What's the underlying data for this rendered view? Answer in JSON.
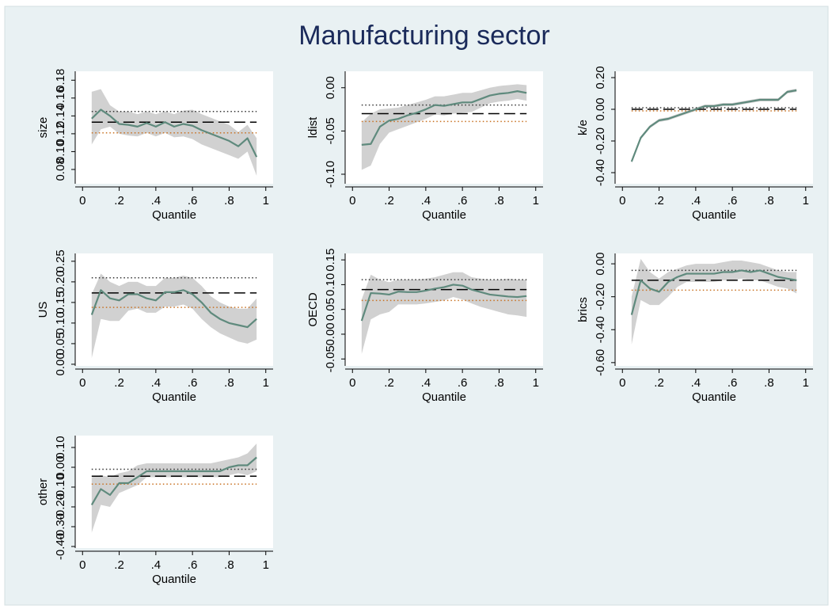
{
  "title": "Manufacturing sector",
  "chart_data": [
    {
      "type": "line",
      "ylabel": "size",
      "xlabel": "Quantile",
      "x": [
        0.05,
        0.1,
        0.15,
        0.2,
        0.25,
        0.3,
        0.35,
        0.4,
        0.45,
        0.5,
        0.55,
        0.6,
        0.65,
        0.7,
        0.75,
        0.8,
        0.85,
        0.9,
        0.95
      ],
      "series": [
        {
          "color": "#5f8a7d",
          "values": [
            0.137,
            0.147,
            0.14,
            0.131,
            0.13,
            0.128,
            0.132,
            0.128,
            0.133,
            0.128,
            0.131,
            0.129,
            0.124,
            0.12,
            0.116,
            0.112,
            0.106,
            0.115,
            0.094
          ]
        }
      ],
      "band": {
        "color": "#c9c9c9",
        "upper": [
          0.167,
          0.17,
          0.152,
          0.145,
          0.145,
          0.142,
          0.145,
          0.142,
          0.145,
          0.142,
          0.146,
          0.147,
          0.142,
          0.138,
          0.134,
          0.13,
          0.122,
          0.13,
          0.115
        ],
        "lower": [
          0.108,
          0.125,
          0.128,
          0.12,
          0.118,
          0.117,
          0.121,
          0.117,
          0.121,
          0.116,
          0.117,
          0.114,
          0.108,
          0.104,
          0.1,
          0.096,
          0.092,
          0.1,
          0.073
        ]
      },
      "reference_lines": [
        {
          "value": 0.133,
          "style": "dashed",
          "color": "#000000"
        },
        {
          "value": 0.145,
          "style": "dotted",
          "color": "#333333"
        },
        {
          "value": 0.121,
          "style": "dotted",
          "color": "#c87020"
        }
      ],
      "xlim": [
        -0.04,
        1.04
      ],
      "xticks": [
        0,
        {
          "value": 0.2,
          "label": ".2"
        },
        {
          "value": 0.4,
          "label": ".4"
        },
        {
          "value": 0.6,
          "label": ".6"
        },
        {
          "value": 0.8,
          "label": ".8"
        },
        1
      ],
      "ylim": [
        0.064,
        0.19
      ],
      "yticks": [
        0.08,
        {
          "value": 0.1,
          "label": "0.10"
        },
        0.12,
        0.14,
        0.16,
        0.18
      ]
    },
    {
      "type": "line",
      "ylabel": "ldist",
      "xlabel": "Quantile",
      "x": [
        0.05,
        0.1,
        0.15,
        0.2,
        0.25,
        0.3,
        0.35,
        0.4,
        0.45,
        0.5,
        0.55,
        0.6,
        0.65,
        0.7,
        0.75,
        0.8,
        0.85,
        0.9,
        0.95
      ],
      "series": [
        {
          "color": "#5f8a7d",
          "values": [
            -0.066,
            -0.065,
            -0.045,
            -0.038,
            -0.036,
            -0.032,
            -0.029,
            -0.025,
            -0.02,
            -0.021,
            -0.019,
            -0.017,
            -0.017,
            -0.013,
            -0.009,
            -0.007,
            -0.006,
            -0.004,
            -0.006
          ]
        }
      ],
      "band": {
        "color": "#c9c9c9",
        "upper": [
          -0.04,
          -0.03,
          -0.025,
          -0.024,
          -0.023,
          -0.02,
          -0.017,
          -0.014,
          -0.01,
          -0.01,
          -0.008,
          -0.006,
          -0.006,
          -0.003,
          0.0,
          0.002,
          0.003,
          0.004,
          0.003
        ],
        "lower": [
          -0.095,
          -0.09,
          -0.065,
          -0.052,
          -0.048,
          -0.044,
          -0.04,
          -0.036,
          -0.031,
          -0.032,
          -0.03,
          -0.029,
          -0.028,
          -0.023,
          -0.018,
          -0.016,
          -0.015,
          -0.013,
          -0.015
        ]
      },
      "reference_lines": [
        {
          "value": -0.03,
          "style": "dashed",
          "color": "#000000"
        },
        {
          "value": -0.02,
          "style": "dotted",
          "color": "#333333"
        },
        {
          "value": -0.039,
          "style": "dotted",
          "color": "#c87020"
        }
      ],
      "xlim": [
        -0.04,
        1.04
      ],
      "xticks": [
        0,
        {
          "value": 0.2,
          "label": ".2"
        },
        {
          "value": 0.4,
          "label": ".4"
        },
        {
          "value": 0.6,
          "label": ".6"
        },
        {
          "value": 0.8,
          "label": ".8"
        },
        1
      ],
      "ylim": [
        -0.111,
        0.019
      ],
      "yticks": [
        {
          "value": -0.1,
          "label": "-0.10"
        },
        -0.05,
        {
          "value": 0,
          "label": "0.00"
        }
      ]
    },
    {
      "type": "line",
      "ylabel": "k/e",
      "xlabel": "Quantile",
      "x": [
        0.05,
        0.1,
        0.15,
        0.2,
        0.25,
        0.3,
        0.35,
        0.4,
        0.45,
        0.5,
        0.55,
        0.6,
        0.65,
        0.7,
        0.75,
        0.8,
        0.85,
        0.9,
        0.95
      ],
      "series": [
        {
          "color": "#5f8a7d",
          "values": [
            -0.33,
            -0.18,
            -0.11,
            -0.07,
            -0.06,
            -0.04,
            -0.02,
            0.0,
            0.02,
            0.02,
            0.03,
            0.03,
            0.04,
            0.05,
            0.06,
            0.06,
            0.06,
            0.11,
            0.12
          ]
        }
      ],
      "band": {
        "color": "#c9c9c9",
        "upper": [
          -0.32,
          -0.17,
          -0.1,
          -0.06,
          -0.05,
          -0.03,
          -0.01,
          0.01,
          0.03,
          0.03,
          0.04,
          0.04,
          0.05,
          0.06,
          0.07,
          0.07,
          0.07,
          0.12,
          0.13
        ],
        "lower": [
          -0.34,
          -0.19,
          -0.12,
          -0.08,
          -0.07,
          -0.05,
          -0.03,
          -0.01,
          0.01,
          0.01,
          0.02,
          0.02,
          0.03,
          0.04,
          0.05,
          0.05,
          0.05,
          0.1,
          0.11
        ]
      },
      "reference_lines": [
        {
          "value": 0.0,
          "style": "dashed",
          "color": "#000000"
        },
        {
          "value": 0.01,
          "style": "dotted",
          "color": "#333333"
        },
        {
          "value": -0.01,
          "style": "dotted",
          "color": "#c87020"
        }
      ],
      "xlim": [
        -0.04,
        1.04
      ],
      "xticks": [
        0,
        {
          "value": 0.2,
          "label": ".2"
        },
        {
          "value": 0.4,
          "label": ".4"
        },
        {
          "value": 0.6,
          "label": ".6"
        },
        {
          "value": 0.8,
          "label": ".8"
        },
        1
      ],
      "ylim": [
        -0.47,
        0.24
      ],
      "yticks": [
        {
          "value": -0.4,
          "label": "-0.40"
        },
        {
          "value": -0.2,
          "label": "-0.20"
        },
        {
          "value": 0,
          "label": "0.00"
        },
        {
          "value": 0.2,
          "label": "0.20"
        }
      ]
    },
    {
      "type": "line",
      "ylabel": "US",
      "xlabel": "Quantile",
      "x": [
        0.05,
        0.1,
        0.15,
        0.2,
        0.25,
        0.3,
        0.35,
        0.4,
        0.45,
        0.5,
        0.55,
        0.6,
        0.65,
        0.7,
        0.75,
        0.8,
        0.85,
        0.9,
        0.95
      ],
      "series": [
        {
          "color": "#5f8a7d",
          "values": [
            0.12,
            0.18,
            0.16,
            0.155,
            0.17,
            0.17,
            0.16,
            0.155,
            0.175,
            0.175,
            0.18,
            0.17,
            0.15,
            0.125,
            0.11,
            0.1,
            0.095,
            0.09,
            0.11
          ]
        }
      ],
      "band": {
        "color": "#c9c9c9",
        "upper": [
          0.17,
          0.22,
          0.2,
          0.19,
          0.2,
          0.2,
          0.19,
          0.19,
          0.21,
          0.21,
          0.215,
          0.21,
          0.19,
          0.165,
          0.15,
          0.14,
          0.135,
          0.135,
          0.16
        ],
        "lower": [
          0.015,
          0.11,
          0.105,
          0.105,
          0.13,
          0.135,
          0.125,
          0.125,
          0.14,
          0.14,
          0.145,
          0.135,
          0.11,
          0.09,
          0.075,
          0.065,
          0.055,
          0.05,
          0.06
        ]
      },
      "reference_lines": [
        {
          "value": 0.173,
          "style": "dashed",
          "color": "#000000"
        },
        {
          "value": 0.21,
          "style": "dotted",
          "color": "#333333"
        },
        {
          "value": 0.138,
          "style": "dotted",
          "color": "#c87020"
        }
      ],
      "xlim": [
        -0.04,
        1.04
      ],
      "xticks": [
        0,
        {
          "value": 0.2,
          "label": ".2"
        },
        {
          "value": 0.4,
          "label": ".4"
        },
        {
          "value": 0.6,
          "label": ".6"
        },
        {
          "value": 0.8,
          "label": ".8"
        },
        1
      ],
      "ylim": [
        -0.004,
        0.269
      ],
      "yticks": [
        {
          "value": 0,
          "label": "0.00"
        },
        0.05,
        {
          "value": 0.1,
          "label": "0.10"
        },
        0.15,
        {
          "value": 0.2,
          "label": "0.20"
        },
        0.25
      ]
    },
    {
      "type": "line",
      "ylabel": "OECD",
      "xlabel": "Quantile",
      "x": [
        0.05,
        0.1,
        0.15,
        0.2,
        0.25,
        0.3,
        0.35,
        0.4,
        0.45,
        0.5,
        0.55,
        0.6,
        0.65,
        0.7,
        0.75,
        0.8,
        0.85,
        0.9,
        0.95
      ],
      "series": [
        {
          "color": "#5f8a7d",
          "values": [
            0.027,
            0.083,
            0.082,
            0.08,
            0.086,
            0.085,
            0.085,
            0.088,
            0.092,
            0.095,
            0.1,
            0.098,
            0.09,
            0.085,
            0.08,
            0.078,
            0.076,
            0.075,
            0.077
          ]
        }
      ],
      "band": {
        "color": "#c9c9c9",
        "upper": [
          0.07,
          0.12,
          0.11,
          0.105,
          0.11,
          0.11,
          0.11,
          0.112,
          0.115,
          0.12,
          0.125,
          0.125,
          0.115,
          0.112,
          0.11,
          0.11,
          0.112,
          0.11,
          0.11
        ],
        "lower": [
          -0.04,
          0.03,
          0.04,
          0.045,
          0.06,
          0.06,
          0.06,
          0.062,
          0.065,
          0.068,
          0.075,
          0.07,
          0.062,
          0.055,
          0.05,
          0.045,
          0.04,
          0.038,
          0.035
        ]
      },
      "reference_lines": [
        {
          "value": 0.09,
          "style": "dashed",
          "color": "#000000"
        },
        {
          "value": 0.11,
          "style": "dotted",
          "color": "#333333"
        },
        {
          "value": 0.068,
          "style": "dotted",
          "color": "#c87020"
        }
      ],
      "xlim": [
        -0.04,
        1.04
      ],
      "xticks": [
        0,
        {
          "value": 0.2,
          "label": ".2"
        },
        {
          "value": 0.4,
          "label": ".4"
        },
        {
          "value": 0.6,
          "label": ".6"
        },
        {
          "value": 0.8,
          "label": ".8"
        },
        1
      ],
      "ylim": [
        -0.064,
        0.163
      ],
      "yticks": [
        -0.05,
        {
          "value": 0,
          "label": "0.00"
        },
        0.05,
        {
          "value": 0.1,
          "label": "0.10"
        },
        0.15
      ]
    },
    {
      "type": "line",
      "ylabel": "brics",
      "xlabel": "Quantile",
      "x": [
        0.05,
        0.1,
        0.15,
        0.2,
        0.25,
        0.3,
        0.35,
        0.4,
        0.45,
        0.5,
        0.55,
        0.6,
        0.65,
        0.7,
        0.75,
        0.8,
        0.85,
        0.9,
        0.95
      ],
      "series": [
        {
          "color": "#5f8a7d",
          "values": [
            -0.31,
            -0.1,
            -0.15,
            -0.17,
            -0.11,
            -0.08,
            -0.06,
            -0.06,
            -0.06,
            -0.06,
            -0.05,
            -0.05,
            -0.04,
            -0.05,
            -0.04,
            -0.06,
            -0.08,
            -0.09,
            -0.1
          ]
        }
      ],
      "band": {
        "color": "#c9c9c9",
        "upper": [
          -0.2,
          0.03,
          -0.05,
          -0.09,
          -0.05,
          -0.03,
          -0.01,
          0.0,
          0.0,
          0.0,
          0.01,
          0.02,
          0.02,
          0.01,
          0.0,
          -0.02,
          -0.04,
          -0.05,
          -0.05
        ],
        "lower": [
          -0.49,
          -0.22,
          -0.25,
          -0.25,
          -0.2,
          -0.14,
          -0.11,
          -0.11,
          -0.11,
          -0.11,
          -0.1,
          -0.1,
          -0.09,
          -0.1,
          -0.1,
          -0.12,
          -0.14,
          -0.15,
          -0.18
        ]
      },
      "reference_lines": [
        {
          "value": -0.1,
          "style": "dashed",
          "color": "#000000"
        },
        {
          "value": -0.04,
          "style": "dotted",
          "color": "#333333"
        },
        {
          "value": -0.16,
          "style": "dotted",
          "color": "#c87020"
        }
      ],
      "xlim": [
        -0.04,
        1.04
      ],
      "xticks": [
        0,
        {
          "value": 0.2,
          "label": ".2"
        },
        {
          "value": 0.4,
          "label": ".4"
        },
        {
          "value": 0.6,
          "label": ".6"
        },
        {
          "value": 0.8,
          "label": ".8"
        },
        1
      ],
      "ylim": [
        -0.62,
        0.063
      ],
      "yticks": [
        {
          "value": -0.6,
          "label": "-0.60"
        },
        {
          "value": -0.4,
          "label": "-0.40"
        },
        {
          "value": -0.2,
          "label": "-0.20"
        },
        {
          "value": 0,
          "label": "0.00"
        }
      ]
    },
    {
      "type": "line",
      "ylabel": "other",
      "xlabel": "Quantile",
      "x": [
        0.05,
        0.1,
        0.15,
        0.2,
        0.25,
        0.3,
        0.35,
        0.4,
        0.45,
        0.5,
        0.55,
        0.6,
        0.65,
        0.7,
        0.75,
        0.8,
        0.85,
        0.9,
        0.95
      ],
      "series": [
        {
          "color": "#5f8a7d",
          "values": [
            -0.19,
            -0.11,
            -0.14,
            -0.08,
            -0.08,
            -0.05,
            -0.02,
            -0.02,
            -0.02,
            -0.02,
            -0.02,
            -0.02,
            -0.02,
            -0.02,
            -0.02,
            0.0,
            0.01,
            0.01,
            0.05
          ]
        }
      ],
      "band": {
        "color": "#c9c9c9",
        "upper": [
          -0.05,
          -0.04,
          -0.05,
          -0.03,
          -0.02,
          0.01,
          0.02,
          0.02,
          0.02,
          0.02,
          0.02,
          0.02,
          0.02,
          0.02,
          0.03,
          0.04,
          0.05,
          0.07,
          0.12
        ],
        "lower": [
          -0.33,
          -0.19,
          -0.2,
          -0.13,
          -0.11,
          -0.09,
          -0.05,
          -0.05,
          -0.05,
          -0.05,
          -0.05,
          -0.05,
          -0.05,
          -0.05,
          -0.05,
          -0.04,
          -0.03,
          -0.04,
          -0.02
        ]
      },
      "reference_lines": [
        {
          "value": -0.045,
          "style": "dashed",
          "color": "#000000"
        },
        {
          "value": -0.01,
          "style": "dotted",
          "color": "#333333"
        },
        {
          "value": -0.085,
          "style": "dotted",
          "color": "#c87020"
        }
      ],
      "xlim": [
        -0.04,
        1.04
      ],
      "xticks": [
        0,
        {
          "value": 0.2,
          "label": ".2"
        },
        {
          "value": 0.4,
          "label": ".4"
        },
        {
          "value": 0.6,
          "label": ".6"
        },
        {
          "value": 0.8,
          "label": ".8"
        },
        1
      ],
      "ylim": [
        -0.408,
        0.16
      ],
      "yticks": [
        {
          "value": -0.4,
          "label": "-0.40"
        },
        {
          "value": -0.3,
          "label": "-0.30"
        },
        {
          "value": -0.2,
          "label": "-0.20"
        },
        {
          "value": -0.1,
          "label": "-0.10"
        },
        {
          "value": 0,
          "label": "0.00"
        },
        {
          "value": 0.1,
          "label": "0.10"
        }
      ]
    }
  ]
}
